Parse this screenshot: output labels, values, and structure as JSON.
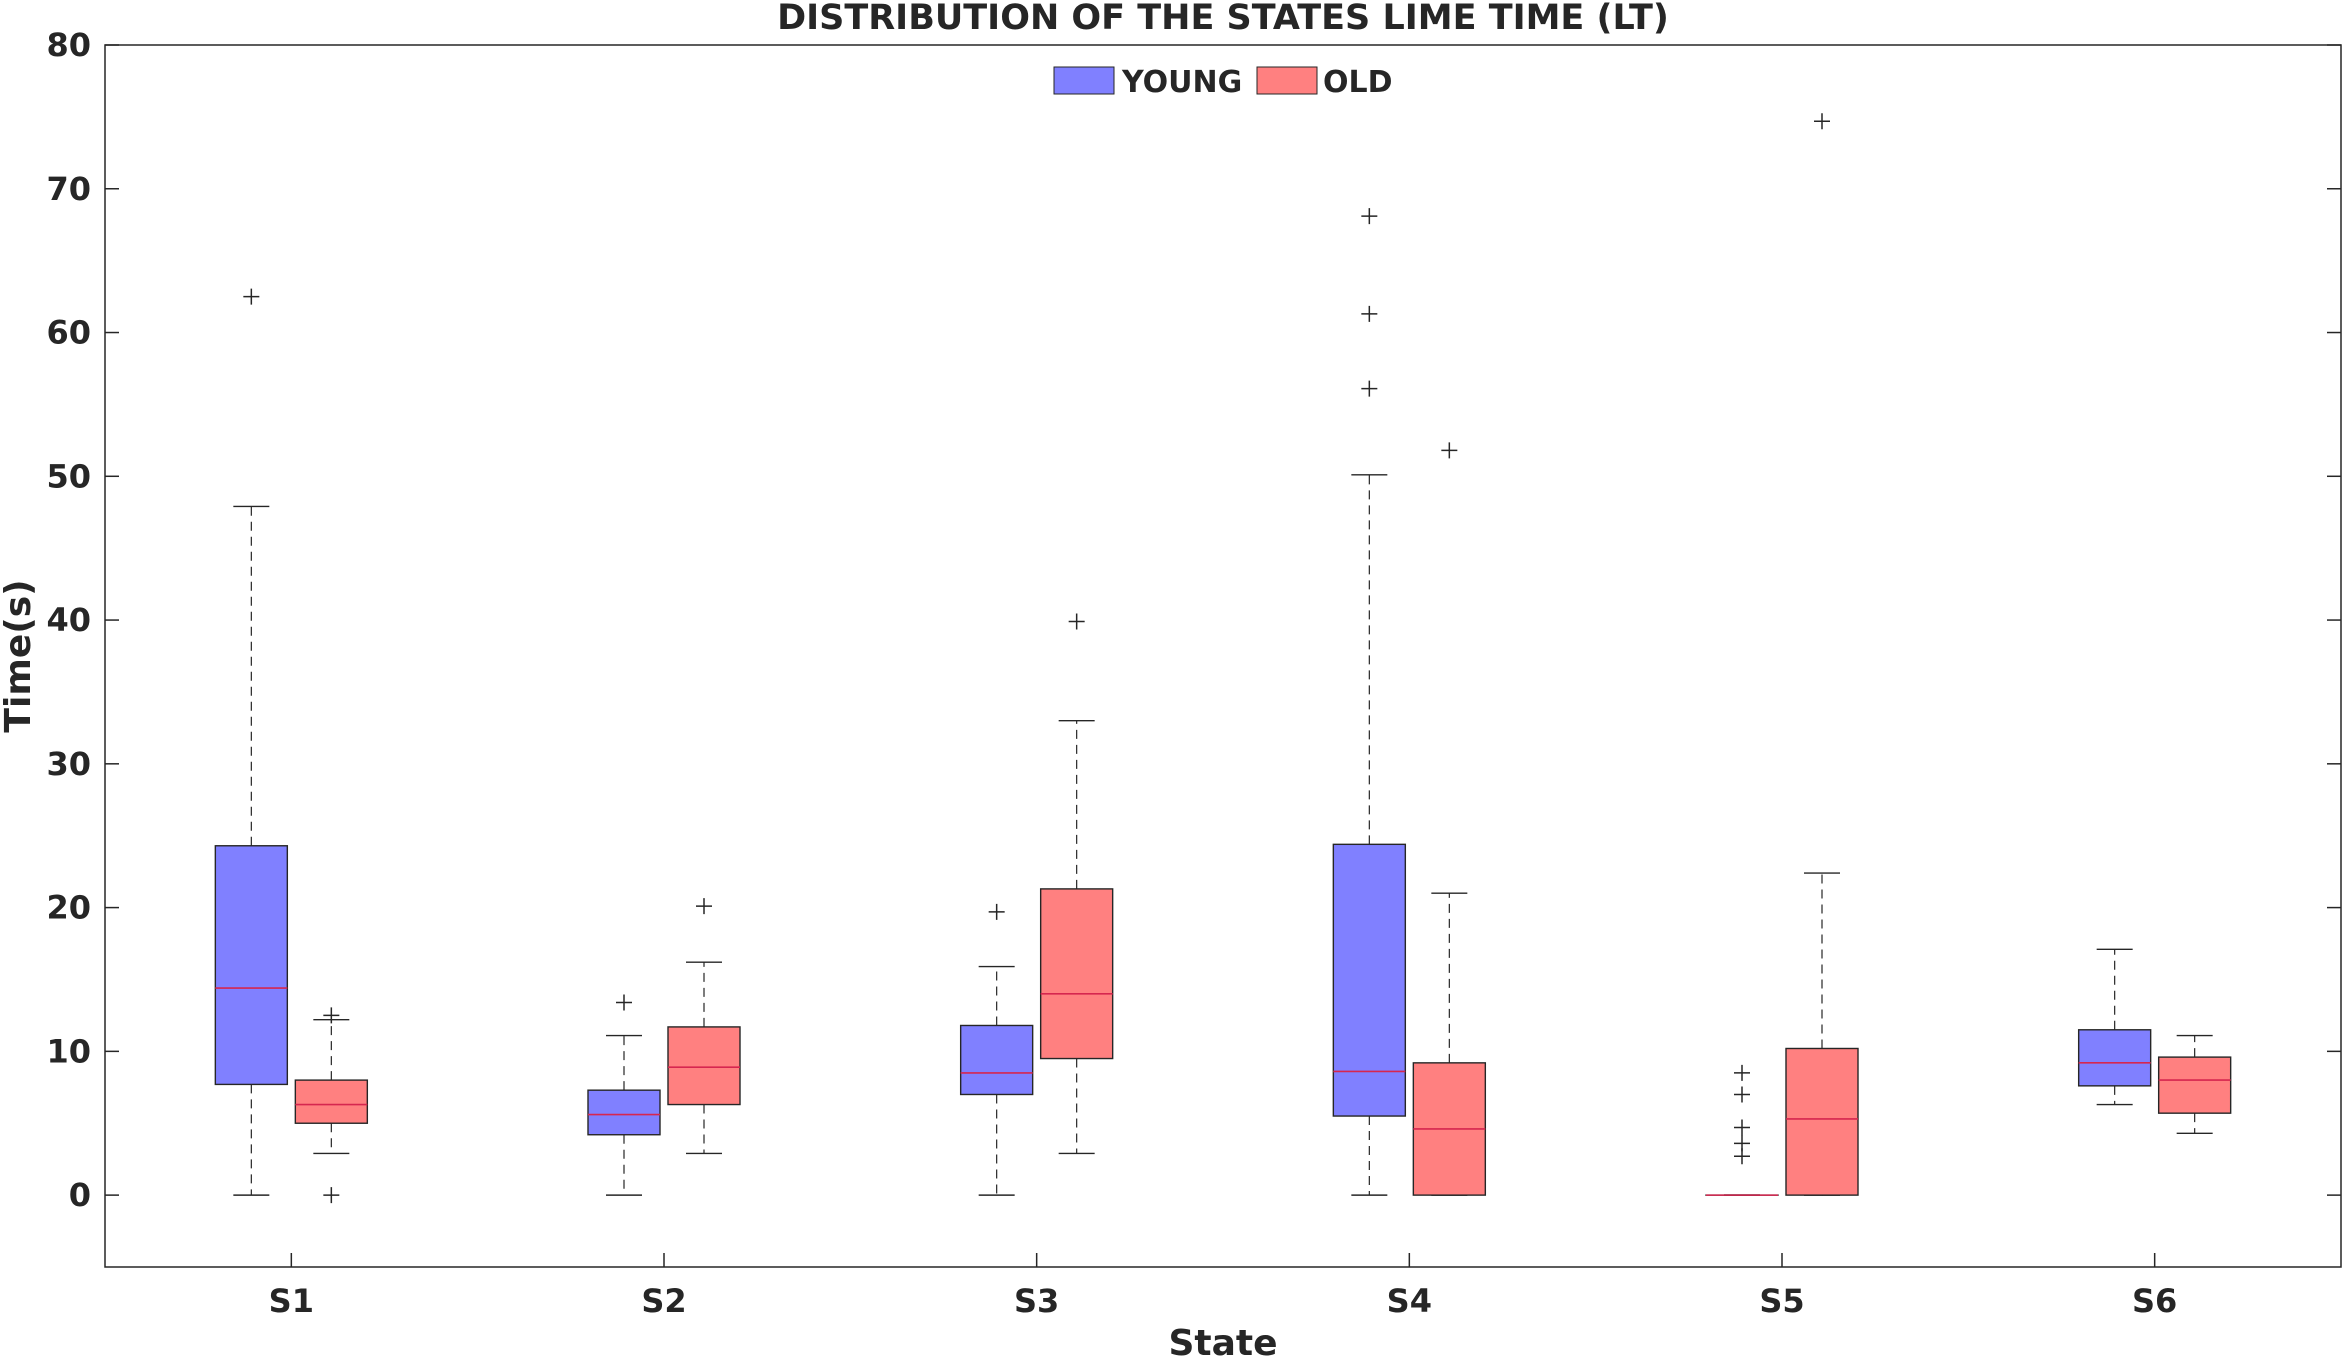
{
  "chart_data": {
    "type": "boxplot",
    "title": "DISTRIBUTION OF THE STATES LIME TIME (LT)",
    "xlabel": "State",
    "ylabel": "Time(s)",
    "categories": [
      "S1",
      "S2",
      "S3",
      "S4",
      "S5",
      "S6"
    ],
    "ylim": [
      -5,
      80
    ],
    "yticks": [
      0,
      10,
      20,
      30,
      40,
      50,
      60,
      70,
      80
    ],
    "grid": false,
    "legend_position": "top-center",
    "series": [
      {
        "name": "YOUNG",
        "color": "#8080ff",
        "boxes": [
          {
            "q1": 7.7,
            "median": 14.4,
            "q3": 24.3,
            "whisker_low": 0,
            "whisker_high": 47.9,
            "outliers": [
              62.5
            ]
          },
          {
            "q1": 4.2,
            "median": 5.6,
            "q3": 7.3,
            "whisker_low": 0,
            "whisker_high": 11.1,
            "outliers": [
              13.4
            ]
          },
          {
            "q1": 7.0,
            "median": 8.5,
            "q3": 11.8,
            "whisker_low": 0,
            "whisker_high": 15.9,
            "outliers": [
              19.7
            ]
          },
          {
            "q1": 5.5,
            "median": 8.6,
            "q3": 24.4,
            "whisker_low": 0,
            "whisker_high": 50.1,
            "outliers": [
              56.1,
              61.3,
              68.1
            ]
          },
          {
            "q1": 0,
            "median": 0,
            "q3": 0,
            "whisker_low": 0,
            "whisker_high": 0,
            "outliers": [
              2.7,
              3.6,
              4.7,
              7.0,
              8.5
            ]
          },
          {
            "q1": 7.6,
            "median": 9.2,
            "q3": 11.5,
            "whisker_low": 6.3,
            "whisker_high": 17.1,
            "outliers": []
          }
        ]
      },
      {
        "name": "OLD",
        "color": "#ff8080",
        "boxes": [
          {
            "q1": 5.0,
            "median": 6.3,
            "q3": 8.0,
            "whisker_low": 2.9,
            "whisker_high": 12.2,
            "outliers": [
              12.5,
              0
            ]
          },
          {
            "q1": 6.3,
            "median": 8.9,
            "q3": 11.7,
            "whisker_low": 2.9,
            "whisker_high": 16.2,
            "outliers": [
              20.1
            ]
          },
          {
            "q1": 9.5,
            "median": 14.0,
            "q3": 21.3,
            "whisker_low": 2.9,
            "whisker_high": 33.0,
            "outliers": [
              39.9
            ]
          },
          {
            "q1": 0,
            "median": 4.6,
            "q3": 9.2,
            "whisker_low": 0,
            "whisker_high": 21.0,
            "outliers": [
              51.8
            ]
          },
          {
            "q1": 0,
            "median": 5.3,
            "q3": 10.2,
            "whisker_low": 0,
            "whisker_high": 22.4,
            "outliers": [
              74.7
            ]
          },
          {
            "q1": 5.7,
            "median": 8.0,
            "q3": 9.6,
            "whisker_low": 4.3,
            "whisker_high": 11.1,
            "outliers": []
          }
        ]
      }
    ]
  }
}
